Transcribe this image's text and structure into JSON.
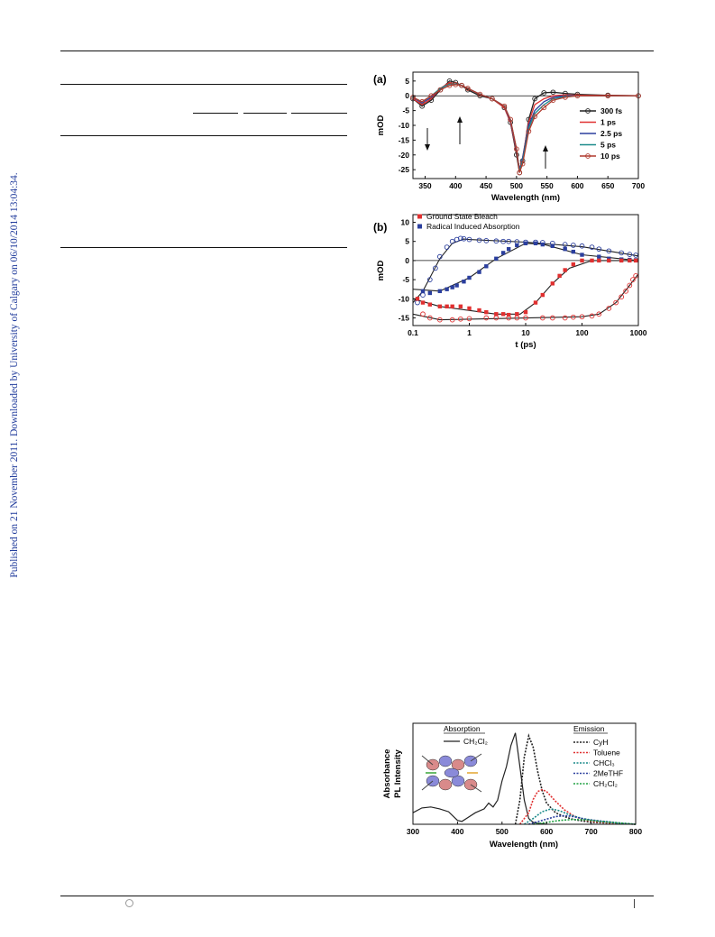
{
  "sidebar_note": "Published on 21 November 2011. Downloaded by University of Calgary on 06/10/2014 13:04:34.",
  "colors": {
    "black": "#222222",
    "red": "#e03030",
    "blue": "#2b3f9e",
    "teal": "#1a8a8a",
    "darkred": "#b03a2e",
    "green": "#1fa040"
  },
  "chart_data": [
    {
      "type": "line",
      "panel_label": "(a)",
      "xlabel": "Wavelength (nm)",
      "ylabel": "mOD",
      "xlim": [
        330,
        700
      ],
      "ylim": [
        -28,
        8
      ],
      "xticks": [
        350,
        400,
        450,
        500,
        550,
        600,
        650,
        700
      ],
      "yticks": [
        5,
        0,
        -5,
        -10,
        -15,
        -20,
        -25
      ],
      "legend_position": "right",
      "series": [
        {
          "name": "300 fs",
          "color": "#222222",
          "marker": "circle-open",
          "x": [
            330,
            345,
            360,
            375,
            390,
            400,
            410,
            420,
            440,
            460,
            480,
            490,
            500,
            505,
            510,
            520,
            530,
            545,
            560,
            580,
            600,
            650,
            700
          ],
          "y": [
            -1,
            -3.5,
            -1.5,
            2,
            5,
            4.5,
            3.5,
            2,
            0,
            -1,
            -4,
            -9,
            -20,
            -26,
            -22,
            -8,
            -1,
            1,
            1.2,
            0.8,
            0.5,
            0.2,
            0
          ]
        },
        {
          "name": "1 ps",
          "color": "#e03030",
          "marker": "none",
          "x": [
            330,
            345,
            360,
            375,
            390,
            400,
            410,
            420,
            440,
            460,
            480,
            490,
            500,
            505,
            510,
            520,
            530,
            545,
            560,
            580,
            600,
            650,
            700
          ],
          "y": [
            -1,
            -3,
            -1,
            2.5,
            4.5,
            4,
            3.5,
            2.5,
            0.5,
            -1,
            -4,
            -9,
            -19,
            -25,
            -21,
            -9,
            -3,
            -1,
            0,
            0.3,
            0.2,
            0.1,
            0
          ]
        },
        {
          "name": "2.5 ps",
          "color": "#2b3f9e",
          "marker": "none",
          "x": [
            330,
            345,
            360,
            375,
            390,
            400,
            410,
            420,
            440,
            460,
            480,
            490,
            500,
            505,
            510,
            520,
            530,
            545,
            560,
            580,
            600,
            650,
            700
          ],
          "y": [
            -0.5,
            -2.5,
            -0.5,
            2.5,
            4,
            4,
            3.5,
            2.5,
            0.5,
            -1,
            -3.5,
            -8.5,
            -18.5,
            -25,
            -21,
            -10,
            -5,
            -2,
            -0.5,
            0,
            0,
            0,
            0
          ]
        },
        {
          "name": "5 ps",
          "color": "#1a8a8a",
          "marker": "none",
          "x": [
            330,
            345,
            360,
            375,
            390,
            400,
            410,
            420,
            440,
            460,
            480,
            490,
            500,
            505,
            510,
            520,
            530,
            545,
            560,
            580,
            600,
            650,
            700
          ],
          "y": [
            -0.5,
            -2,
            0,
            2.5,
            4,
            4,
            3.5,
            2.5,
            0.5,
            -1,
            -3.5,
            -8,
            -18,
            -25.5,
            -22,
            -11,
            -6,
            -3,
            -1,
            -0.3,
            0,
            0,
            0
          ]
        },
        {
          "name": "10 ps",
          "color": "#b03a2e",
          "marker": "circle-open",
          "x": [
            330,
            345,
            360,
            375,
            390,
            400,
            410,
            420,
            440,
            460,
            480,
            490,
            500,
            505,
            510,
            520,
            530,
            545,
            560,
            580,
            600,
            650,
            700
          ],
          "y": [
            -0.5,
            -2,
            0,
            2,
            3.5,
            3.8,
            3.5,
            2.5,
            0.5,
            -1,
            -3.5,
            -8,
            -18,
            -26,
            -23,
            -12,
            -7,
            -4,
            -1.5,
            -0.5,
            0,
            0,
            0
          ]
        }
      ]
    },
    {
      "type": "scatter",
      "panel_label": "(b)",
      "xlabel": "t (ps)",
      "ylabel": "mOD",
      "xscale": "log",
      "xlim": [
        0.1,
        1000
      ],
      "ylim": [
        -17,
        12
      ],
      "xticks": [
        0.1,
        1,
        10,
        100,
        1000
      ],
      "xtick_labels": [
        "0.1",
        "1",
        "10",
        "100",
        "1000"
      ],
      "yticks": [
        10,
        5,
        0,
        -5,
        -10,
        -15
      ],
      "legend_position": "top-left",
      "legend": [
        {
          "name": "Ground State Bleach",
          "color": "#e03030"
        },
        {
          "name": "Radical Induced Absorption",
          "color": "#2b3f9e"
        }
      ],
      "series": [
        {
          "color": "#2b3f9e",
          "marker": "circle-open",
          "x": [
            0.12,
            0.15,
            0.2,
            0.25,
            0.3,
            0.4,
            0.5,
            0.6,
            0.7,
            0.8,
            1,
            1.5,
            2,
            3,
            4,
            5,
            7,
            10,
            15,
            20,
            30,
            50,
            70,
            100,
            150,
            200,
            300,
            500,
            700,
            900
          ],
          "y": [
            -11,
            -9,
            -5,
            -2,
            1,
            3.5,
            5,
            5.5,
            5.8,
            5.7,
            5.5,
            5.3,
            5.2,
            5.1,
            5.0,
            5.0,
            4.9,
            4.8,
            4.8,
            4.7,
            4.5,
            4.2,
            4,
            3.8,
            3.5,
            3,
            2.5,
            2,
            1.6,
            1.4
          ],
          "fit": [
            [
              0.1,
              -11
            ],
            [
              0.15,
              -8
            ],
            [
              0.2,
              -4.5
            ],
            [
              0.3,
              0.5
            ],
            [
              0.5,
              4.5
            ],
            [
              0.8,
              5.6
            ],
            [
              1,
              5.5
            ],
            [
              10,
              4.8
            ],
            [
              100,
              3.6
            ],
            [
              1000,
              1.2
            ]
          ]
        },
        {
          "color": "#2b3f9e",
          "marker": "square-filled",
          "x": [
            0.15,
            0.2,
            0.3,
            0.4,
            0.5,
            0.6,
            0.8,
            1,
            1.5,
            2,
            3,
            4,
            5,
            7,
            10,
            15,
            20,
            30,
            50,
            70,
            100,
            200,
            300,
            500,
            700,
            900
          ],
          "y": [
            -8,
            -8.5,
            -8,
            -7.5,
            -7,
            -6.5,
            -5.5,
            -4.5,
            -3,
            -1.5,
            0.5,
            2,
            3,
            4,
            4.5,
            4.5,
            4.2,
            3.8,
            3,
            2.3,
            1.5,
            1,
            0.5,
            0.3,
            0.2,
            0.1
          ],
          "fit": [
            [
              0.1,
              -7.5
            ],
            [
              0.3,
              -8
            ],
            [
              1,
              -4.5
            ],
            [
              3,
              0.5
            ],
            [
              10,
              4.5
            ],
            [
              20,
              4.3
            ],
            [
              100,
              1.5
            ],
            [
              1000,
              0
            ]
          ]
        },
        {
          "color": "#e03030",
          "marker": "square-filled",
          "x": [
            0.12,
            0.15,
            0.2,
            0.3,
            0.4,
            0.5,
            0.7,
            1,
            1.5,
            2,
            3,
            4,
            5,
            7,
            10,
            15,
            20,
            30,
            40,
            50,
            70,
            100,
            150,
            200,
            300,
            500,
            700,
            900
          ],
          "y": [
            -10,
            -11,
            -11.5,
            -12,
            -12,
            -12,
            -12,
            -12.5,
            -13,
            -13.5,
            -14,
            -14,
            -14.2,
            -14,
            -13.5,
            -11,
            -9,
            -6,
            -4,
            -2.5,
            -1,
            0,
            0,
            0,
            0,
            0,
            0,
            0
          ],
          "fit": [
            [
              0.1,
              -10
            ],
            [
              0.3,
              -12
            ],
            [
              3,
              -14
            ],
            [
              8,
              -14
            ],
            [
              15,
              -11
            ],
            [
              30,
              -6
            ],
            [
              60,
              -2
            ],
            [
              150,
              0
            ],
            [
              1000,
              0
            ]
          ]
        },
        {
          "color": "#e03030",
          "marker": "circle-open",
          "x": [
            0.15,
            0.2,
            0.3,
            0.5,
            0.7,
            1,
            2,
            3,
            5,
            7,
            10,
            20,
            30,
            50,
            70,
            100,
            150,
            200,
            300,
            400,
            500,
            600,
            700,
            800,
            900
          ],
          "y": [
            -14,
            -15,
            -15.5,
            -15.5,
            -15.3,
            -15.2,
            -15,
            -15,
            -15,
            -15,
            -15,
            -15,
            -15,
            -15,
            -14.8,
            -14.7,
            -14.5,
            -14,
            -12.5,
            -11,
            -9.5,
            -8,
            -6.5,
            -5,
            -4
          ],
          "fit": [
            [
              0.1,
              -14
            ],
            [
              0.3,
              -15.5
            ],
            [
              100,
              -14.7
            ],
            [
              200,
              -14
            ],
            [
              400,
              -11
            ],
            [
              700,
              -6.5
            ],
            [
              1000,
              -3.5
            ]
          ]
        }
      ]
    },
    {
      "type": "line",
      "xlabel": "Wavelength (nm)",
      "ylabel": "Absorbance PL Intensity",
      "ylabel_lines": [
        "Absorbance",
        "PL Intensity"
      ],
      "xlim": [
        300,
        800
      ],
      "ylim": [
        0,
        1.05
      ],
      "xticks": [
        300,
        400,
        500,
        600,
        700,
        800
      ],
      "absorption_legend": {
        "heading": "Absorption",
        "entries": [
          {
            "name": "CH₂Cl₂",
            "color": "#222222",
            "style": "solid"
          }
        ]
      },
      "emission_legend": {
        "heading": "Emission",
        "entries": [
          {
            "name": "CyH",
            "color": "#222222",
            "style": "dotted"
          },
          {
            "name": "Toluene",
            "color": "#e03030",
            "style": "dotted"
          },
          {
            "name": "CHCl₃",
            "color": "#1a8a8a",
            "style": "dotted"
          },
          {
            "name": "2MeTHF",
            "color": "#2b3f9e",
            "style": "dotted"
          },
          {
            "name": "CH₂Cl₂",
            "color": "#1fa040",
            "style": "dotted"
          }
        ]
      },
      "series": [
        {
          "name": "CH₂Cl₂ absorption",
          "color": "#222222",
          "style": "solid",
          "x": [
            300,
            320,
            340,
            360,
            380,
            400,
            410,
            420,
            440,
            460,
            470,
            480,
            490,
            500,
            510,
            520,
            530,
            540,
            550,
            560,
            570,
            580,
            600
          ],
          "y": [
            0.12,
            0.17,
            0.18,
            0.16,
            0.13,
            0.04,
            0.03,
            0.06,
            0.12,
            0.16,
            0.22,
            0.18,
            0.25,
            0.45,
            0.6,
            0.82,
            0.95,
            0.6,
            0.25,
            0.06,
            0.02,
            0.01,
            0
          ]
        },
        {
          "name": "CyH",
          "color": "#222222",
          "style": "dotted",
          "x": [
            530,
            540,
            550,
            560,
            570,
            580,
            590,
            600,
            620,
            640,
            660,
            700,
            750,
            800
          ],
          "y": [
            0,
            0.25,
            0.7,
            0.92,
            0.8,
            0.55,
            0.35,
            0.22,
            0.12,
            0.08,
            0.05,
            0.02,
            0.01,
            0
          ]
        },
        {
          "name": "Toluene",
          "color": "#e03030",
          "style": "dotted",
          "x": [
            540,
            560,
            570,
            580,
            590,
            600,
            620,
            640,
            660,
            680,
            700,
            750,
            800
          ],
          "y": [
            0,
            0.12,
            0.26,
            0.34,
            0.36,
            0.34,
            0.24,
            0.15,
            0.09,
            0.05,
            0.03,
            0.01,
            0
          ]
        },
        {
          "name": "CHCl₃",
          "color": "#1a8a8a",
          "style": "dotted",
          "x": [
            550,
            570,
            590,
            610,
            630,
            650,
            680,
            720,
            760,
            800
          ],
          "y": [
            0,
            0.06,
            0.13,
            0.16,
            0.14,
            0.1,
            0.06,
            0.03,
            0.01,
            0
          ]
        },
        {
          "name": "2MeTHF",
          "color": "#2b3f9e",
          "style": "dotted",
          "x": [
            560,
            590,
            620,
            640,
            660,
            690,
            730,
            770,
            800
          ],
          "y": [
            0,
            0.04,
            0.08,
            0.09,
            0.08,
            0.05,
            0.03,
            0.01,
            0
          ]
        },
        {
          "name": "CH₂Cl₂ emission",
          "color": "#1fa040",
          "style": "dotted",
          "x": [
            570,
            600,
            630,
            660,
            690,
            720,
            760,
            800
          ],
          "y": [
            0,
            0.02,
            0.04,
            0.05,
            0.045,
            0.03,
            0.015,
            0
          ]
        }
      ]
    }
  ]
}
